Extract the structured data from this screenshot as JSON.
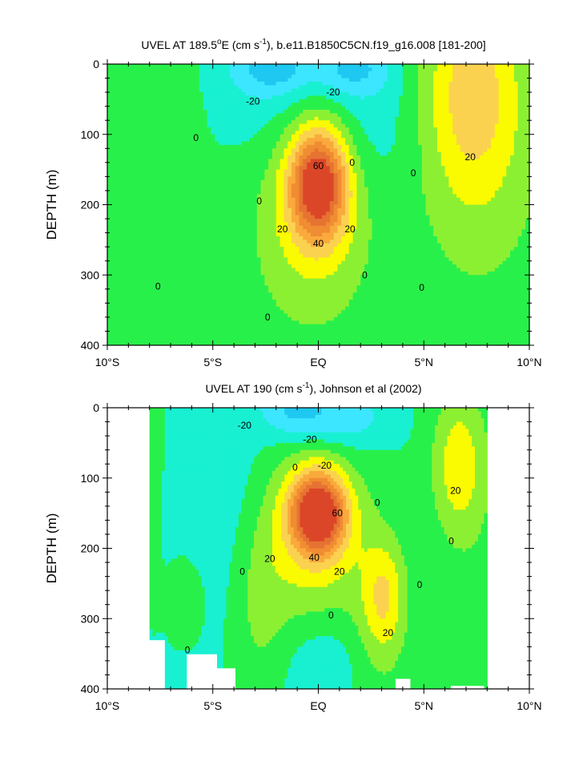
{
  "colors": {
    "lvl_neg30": "#1ec8f0",
    "lvl_neg20": "#3ce6ff",
    "lvl_neg10": "#19f0d2",
    "lvl_0": "#28f04b",
    "lvl_10": "#8cf032",
    "lvl_20": "#fafa00",
    "lvl_30": "#fad250",
    "lvl_40": "#faaa3c",
    "lvl_50": "#f08c32",
    "lvl_60": "#e67332",
    "lvl_70": "#dc4628"
  },
  "chart_data": [
    {
      "type": "heatmap",
      "title_main": "UVEL AT 189.5",
      "title_deg": "o",
      "title_rest": "E (cm s",
      "title_sup": "-1",
      "title_end": "), b.e11.B1850C5CN.f19_g16.008 [181-200]",
      "ylabel": "DEPTH (m)",
      "x_ticks": [
        "10°S",
        "5°S",
        "EQ",
        "5°N",
        "10°N"
      ],
      "x_tick_values": [
        -10,
        -5,
        0,
        5,
        10
      ],
      "y_ticks": [
        "0",
        "100",
        "200",
        "300",
        "400"
      ],
      "y_tick_values": [
        0,
        100,
        200,
        300,
        400
      ],
      "xlim": [
        -10,
        10
      ],
      "ylim": [
        400,
        0
      ],
      "contour_labels": [
        {
          "text": "-20",
          "x": -3.1,
          "y": 53
        },
        {
          "text": "-20",
          "x": 0.7,
          "y": 40
        },
        {
          "text": "0",
          "x": -5.8,
          "y": 105
        },
        {
          "text": "0",
          "x": 1.6,
          "y": 140
        },
        {
          "text": "0",
          "x": 4.5,
          "y": 155
        },
        {
          "text": "0",
          "x": -2.8,
          "y": 195
        },
        {
          "text": "60",
          "x": 0.0,
          "y": 145
        },
        {
          "text": "20",
          "x": -1.7,
          "y": 235
        },
        {
          "text": "20",
          "x": 1.5,
          "y": 235
        },
        {
          "text": "40",
          "x": 0.0,
          "y": 255
        },
        {
          "text": "20",
          "x": 7.2,
          "y": 132
        },
        {
          "text": "0",
          "x": -7.6,
          "y": 316
        },
        {
          "text": "0",
          "x": 2.2,
          "y": 300
        },
        {
          "text": "0",
          "x": 4.9,
          "y": 318
        },
        {
          "text": "0",
          "x": -2.4,
          "y": 360
        }
      ]
    },
    {
      "type": "heatmap",
      "title_main": "UVEL AT 190 (cm s",
      "title_sup": "-1",
      "title_end": "), Johnson et al (2002)",
      "ylabel": "DEPTH (m)",
      "x_ticks": [
        "10°S",
        "5°S",
        "EQ",
        "5°N",
        "10°N"
      ],
      "x_tick_values": [
        -10,
        -5,
        0,
        5,
        10
      ],
      "y_ticks": [
        "0",
        "100",
        "200",
        "300",
        "400"
      ],
      "y_tick_values": [
        0,
        100,
        200,
        300,
        400
      ],
      "xlim": [
        -10,
        10
      ],
      "ylim": [
        400,
        0
      ],
      "data_xrange": [
        -8,
        8
      ],
      "contour_labels": [
        {
          "text": "-20",
          "x": -3.5,
          "y": 25
        },
        {
          "text": "-20",
          "x": -0.4,
          "y": 45
        },
        {
          "text": "0",
          "x": -1.1,
          "y": 85
        },
        {
          "text": "-20",
          "x": 0.3,
          "y": 82
        },
        {
          "text": "0",
          "x": 2.8,
          "y": 135
        },
        {
          "text": "60",
          "x": 0.9,
          "y": 150
        },
        {
          "text": "20",
          "x": -2.3,
          "y": 215
        },
        {
          "text": "40",
          "x": -0.2,
          "y": 213
        },
        {
          "text": "20",
          "x": 1.0,
          "y": 233
        },
        {
          "text": "0",
          "x": -3.6,
          "y": 233
        },
        {
          "text": "0",
          "x": 0.6,
          "y": 295
        },
        {
          "text": "20",
          "x": 3.3,
          "y": 320
        },
        {
          "text": "0",
          "x": 4.8,
          "y": 252
        },
        {
          "text": "20",
          "x": 6.5,
          "y": 118
        },
        {
          "text": "0",
          "x": 6.3,
          "y": 190
        },
        {
          "text": "0",
          "x": -6.2,
          "y": 345
        }
      ]
    }
  ]
}
